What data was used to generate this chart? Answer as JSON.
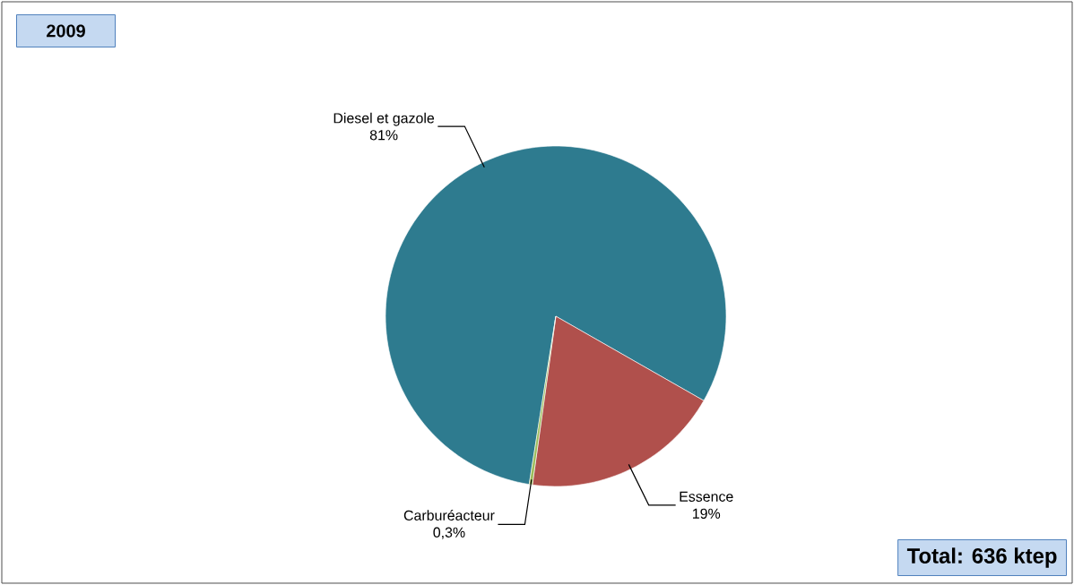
{
  "chart_data": {
    "type": "pie",
    "title": "2009",
    "categories": [
      "Diesel et gazole",
      "Essence",
      "Carburéacteur"
    ],
    "values": [
      81,
      19,
      0.3
    ],
    "value_labels": [
      "81%",
      "19%",
      "0,3%"
    ],
    "colors": [
      "#2e7b8f",
      "#b0504c",
      "#9bbb59"
    ],
    "annotations": [
      "Total: 636 ktep"
    ]
  }
}
